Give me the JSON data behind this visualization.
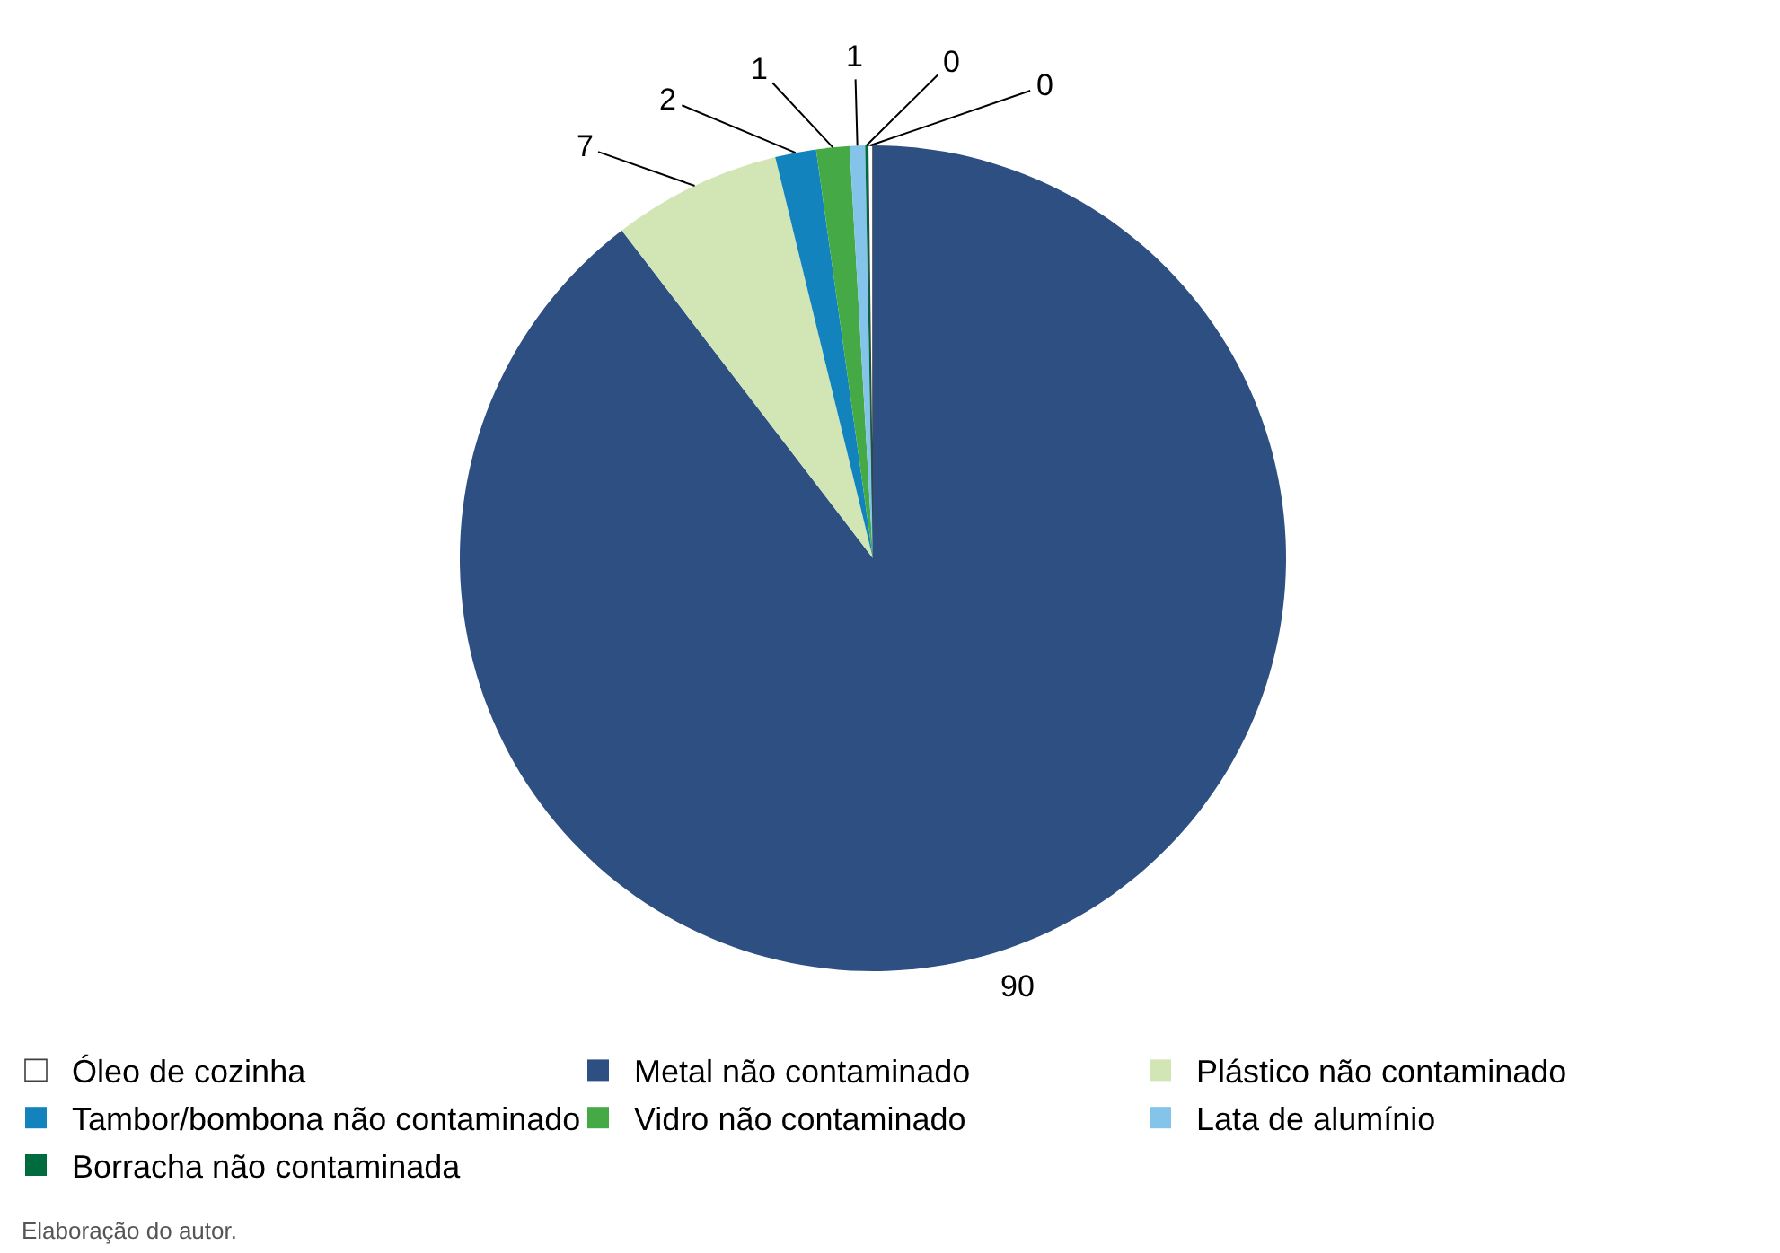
{
  "chart_data": {
    "type": "pie",
    "categories": [
      "Óleo de cozinha",
      "Metal não contaminado",
      "Plástico não contaminado",
      "Tambor/bombona não contaminado",
      "Vidro não contaminado",
      "Lata de alumínio",
      "Borracha não contaminada"
    ],
    "values": [
      0.2,
      89.6,
      6.6,
      1.6,
      1.3,
      0.6,
      0.1
    ],
    "value_labels": [
      "0",
      "90",
      "7",
      "2",
      "1",
      "1",
      "0"
    ],
    "colors": [
      "#ffffff",
      "#2e4f82",
      "#d2e5b4",
      "#1283bd",
      "#45a946",
      "#84c3ea",
      "#006b3e"
    ],
    "legend": "bottom",
    "annotations": [
      "Elaboração do autor."
    ]
  }
}
